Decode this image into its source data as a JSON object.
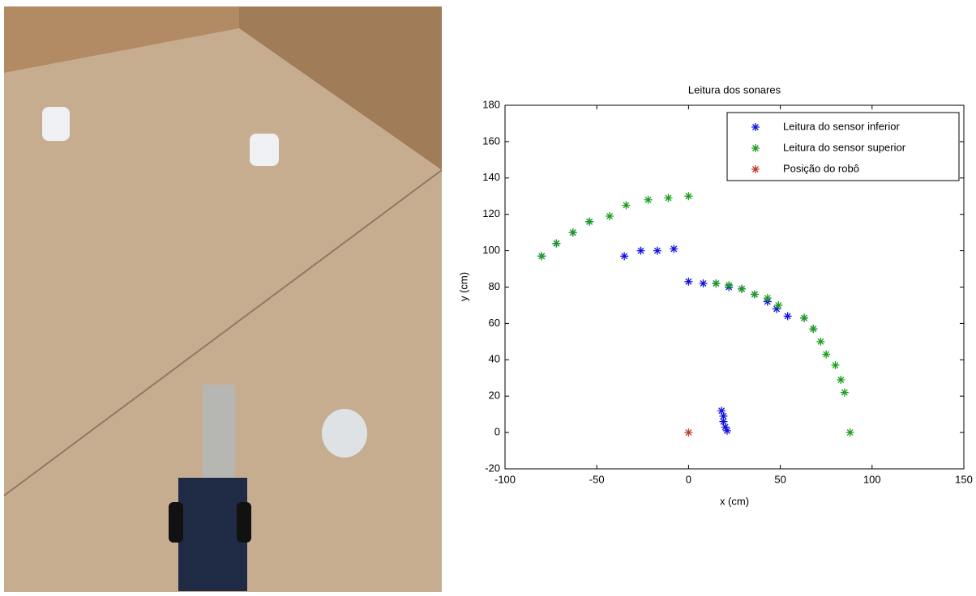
{
  "chart_data": {
    "type": "scatter",
    "title": "Leitura dos sonares",
    "xlabel": "x (cm)",
    "ylabel": "y (cm)",
    "xlim": [
      -100,
      150
    ],
    "xticks": [
      -100,
      -50,
      0,
      50,
      100,
      150
    ],
    "ylim": [
      -20,
      180
    ],
    "yticks": [
      -20,
      0,
      20,
      40,
      60,
      80,
      100,
      120,
      140,
      160,
      180
    ],
    "legend": "upper right",
    "series": [
      {
        "name": "Leitura do sensor inferior",
        "color": "#1010e0",
        "x": [
          -80,
          -72,
          -63,
          -54,
          -35,
          -26,
          -17,
          -8,
          0,
          8,
          15,
          22,
          29,
          36,
          43,
          48,
          54,
          63,
          68,
          18,
          19,
          19,
          20,
          21
        ],
        "y": [
          97,
          104,
          110,
          116,
          97,
          100,
          100,
          101,
          83,
          82,
          82,
          80,
          79,
          76,
          72,
          68,
          64,
          63,
          57,
          12,
          9,
          6,
          3,
          1
        ]
      },
      {
        "name": "Leitura do sensor superior",
        "color": "#1a9e1a",
        "x": [
          -80,
          -72,
          -63,
          -54,
          -43,
          -34,
          -22,
          -11,
          0,
          15,
          22,
          29,
          36,
          43,
          49,
          63,
          68,
          72,
          75,
          80,
          83,
          85,
          88
        ],
        "y": [
          97,
          104,
          110,
          116,
          119,
          125,
          128,
          129,
          130,
          82,
          81,
          79,
          76,
          74,
          70,
          63,
          57,
          50,
          43,
          37,
          29,
          22,
          0
        ]
      },
      {
        "name": "Posição do robô",
        "color": "#c0392b",
        "x": [
          0
        ],
        "y": [
          0
        ]
      }
    ]
  }
}
